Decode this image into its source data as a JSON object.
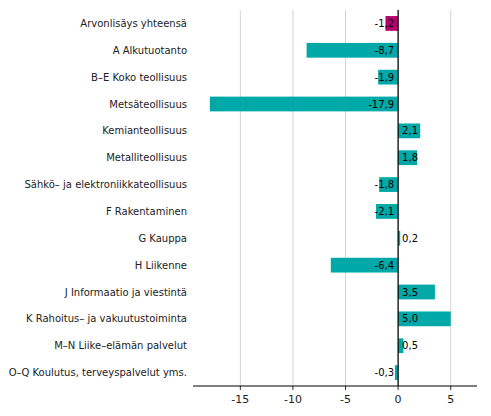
{
  "chart_data": {
    "type": "bar",
    "orientation": "horizontal",
    "categories": [
      "Arvonlisäys yhteensä",
      "A Alkutuotanto",
      "B–E Koko teollisuus",
      "Metsäteollisuus",
      "Kemianteollisuus",
      "Metalliteollisuus",
      "Sähkö– ja elektroniikkateollisuus",
      "F Rakentaminen",
      "G Kauppa",
      "H Liikenne",
      "J Informaatio ja viestintä",
      "K Rahoitus– ja vakuutustoiminta",
      "M–N Liike–elämän palvelut",
      "O–Q Koulutus, terveyspalvelut yms."
    ],
    "values": [
      -1.2,
      -8.7,
      -1.9,
      -17.9,
      2.1,
      1.8,
      -1.8,
      -2.1,
      0.2,
      -6.4,
      3.5,
      5.0,
      0.5,
      -0.3
    ],
    "value_labels": [
      "-1,2",
      "-8,7",
      "-1,9",
      "-17,9",
      "2,1",
      "1,8",
      "-1,8",
      "-2,1",
      "0,2",
      "-6,4",
      "3,5",
      "5,0",
      "0,5",
      "-0,3"
    ],
    "colors": [
      "#b5006e",
      "#00a8a8",
      "#00a8a8",
      "#00a8a8",
      "#00a8a8",
      "#00a8a8",
      "#00a8a8",
      "#00a8a8",
      "#00a8a8",
      "#00a8a8",
      "#00a8a8",
      "#00a8a8",
      "#00a8a8",
      "#00a8a8"
    ],
    "xlim": [
      -19.5,
      7.5
    ],
    "xticks": [
      -15,
      -10,
      -5,
      0,
      5
    ],
    "grid": true,
    "data_labels": true
  }
}
